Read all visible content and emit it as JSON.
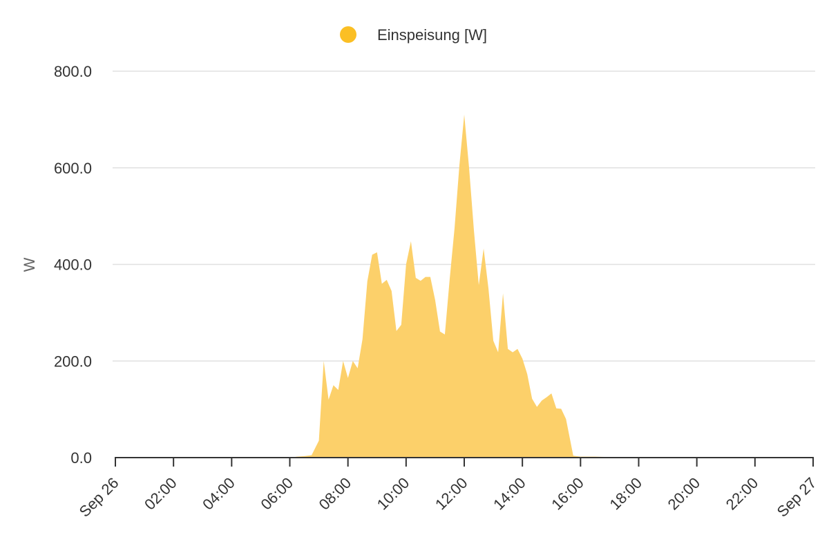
{
  "chart_data": {
    "type": "area",
    "title": "",
    "xlabel": "",
    "ylabel": "W",
    "ylim": [
      0,
      800
    ],
    "xlim": [
      "Sep 26 00:00",
      "Sep 27 00:00"
    ],
    "grid": true,
    "legend_position": "top-center",
    "y_ticks": [
      "0.0",
      "200.0",
      "400.0",
      "600.0",
      "800.0"
    ],
    "x_ticks": [
      "Sep 26",
      "02:00",
      "04:00",
      "06:00",
      "08:00",
      "10:00",
      "12:00",
      "14:00",
      "16:00",
      "18:00",
      "20:00",
      "22:00",
      "Sep 27"
    ],
    "series": [
      {
        "name": "Einspeisung [W]",
        "color": "#fbbf24",
        "fill_color": "#fcd06a",
        "x": [
          "06:00",
          "06:15",
          "06:30",
          "06:45",
          "07:00",
          "07:10",
          "07:20",
          "07:30",
          "07:40",
          "07:50",
          "08:00",
          "08:10",
          "08:20",
          "08:30",
          "08:40",
          "08:50",
          "09:00",
          "09:10",
          "09:20",
          "09:30",
          "09:40",
          "09:50",
          "10:00",
          "10:10",
          "10:20",
          "10:30",
          "10:40",
          "10:50",
          "11:00",
          "11:10",
          "11:20",
          "11:30",
          "11:40",
          "11:50",
          "12:00",
          "12:10",
          "12:20",
          "12:30",
          "12:40",
          "12:50",
          "13:00",
          "13:10",
          "13:20",
          "13:30",
          "13:40",
          "13:50",
          "14:00",
          "14:10",
          "14:20",
          "14:30",
          "14:40",
          "14:50",
          "15:00",
          "15:10",
          "15:20",
          "15:30",
          "15:45",
          "16:00",
          "16:30",
          "17:00",
          "17:30",
          "18:00"
        ],
        "values": [
          0,
          2,
          3,
          5,
          35,
          200,
          120,
          150,
          140,
          200,
          165,
          200,
          185,
          245,
          365,
          420,
          425,
          360,
          368,
          345,
          262,
          275,
          400,
          448,
          372,
          366,
          374,
          374,
          326,
          261,
          255,
          370,
          475,
          605,
          710,
          600,
          470,
          357,
          433,
          350,
          242,
          218,
          340,
          225,
          218,
          225,
          205,
          173,
          122,
          105,
          118,
          125,
          133,
          102,
          101,
          80,
          4,
          2,
          2,
          1,
          1,
          0
        ]
      }
    ]
  }
}
